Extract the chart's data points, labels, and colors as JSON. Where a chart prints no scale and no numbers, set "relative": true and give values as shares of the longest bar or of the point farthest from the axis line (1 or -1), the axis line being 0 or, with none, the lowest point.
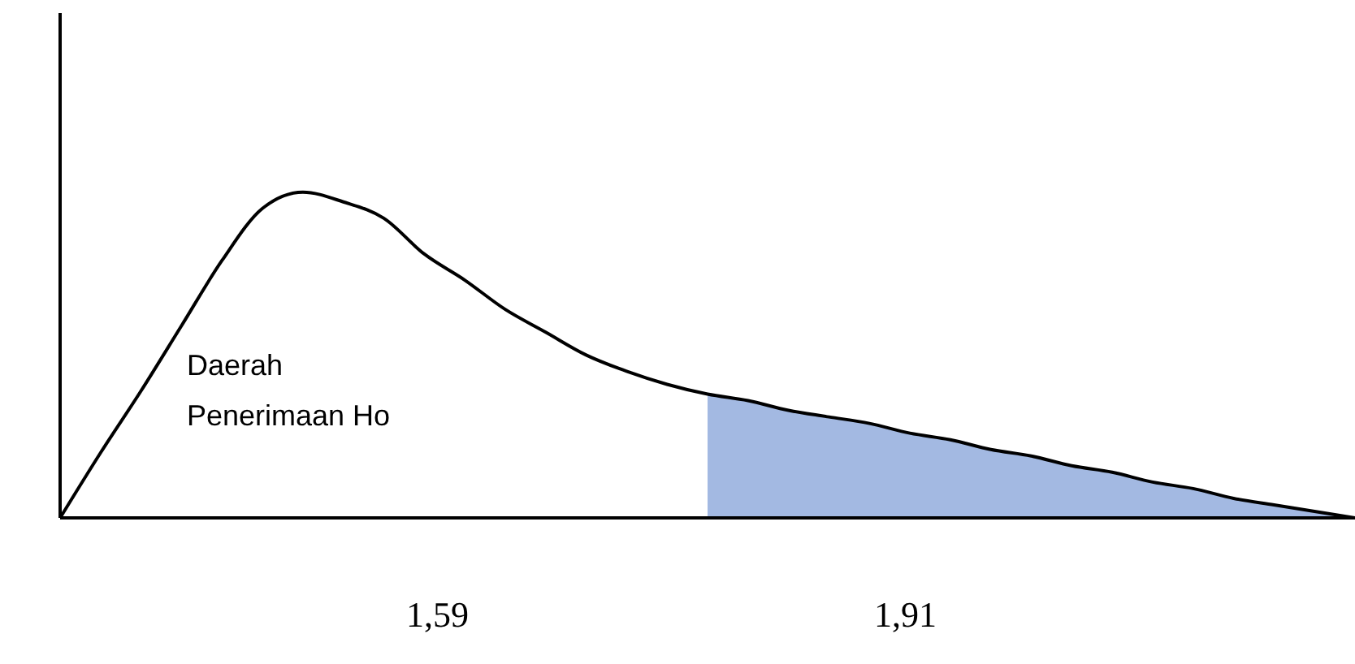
{
  "chart_data": {
    "type": "line",
    "relative": true,
    "categories": [
      null,
      null,
      null,
      null,
      null,
      null,
      null,
      null,
      null,
      null,
      null,
      null,
      null,
      null,
      null,
      null,
      null,
      null,
      null,
      null,
      null,
      null,
      null,
      null,
      null,
      null,
      null,
      null,
      null,
      null,
      null,
      null,
      null
    ],
    "series": [
      {
        "type": "area",
        "color": "#a3b9e2",
        "values": [
          null,
          null,
          null,
          null,
          null,
          null,
          null,
          null,
          null,
          null,
          null,
          null,
          null,
          null,
          null,
          null,
          0.38,
          0.36,
          0.33,
          0.31,
          0.29,
          0.26,
          0.24,
          0.21,
          0.19,
          0.16,
          0.14,
          0.11,
          0.09,
          0.06,
          0.04,
          0.02,
          0
        ]
      },
      {
        "color": "#000000",
        "values": [
          0,
          0.2,
          0.39,
          0.59,
          0.79,
          0.95,
          1,
          0.97,
          0.92,
          0.81,
          0.73,
          0.64,
          0.57,
          0.5,
          0.45,
          0.41,
          0.38,
          0.36,
          0.33,
          0.31,
          0.29,
          0.26,
          0.24,
          0.21,
          0.19,
          0.16,
          0.14,
          0.11,
          0.09,
          0.06,
          0.04,
          0.02,
          0
        ]
      }
    ],
    "annotations": [
      "Daerah\nPenerimaan Ho",
      "1,59",
      "1,91"
    ]
  }
}
